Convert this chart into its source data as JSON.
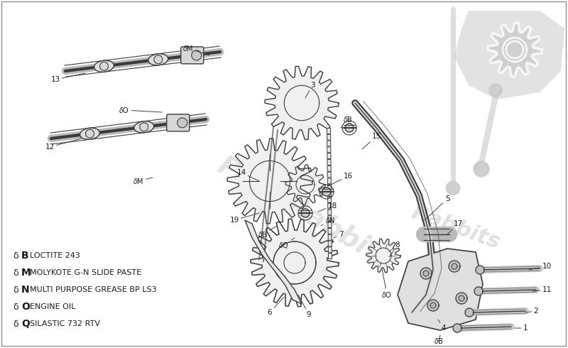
{
  "bg_color": "#ffffff",
  "line_color": "#3a3a3a",
  "light_gray": "#c8c8c8",
  "legend_items": [
    {
      "symbol": "B",
      "text": "LOCTITE 243"
    },
    {
      "symbol": "M",
      "text": "MOLYKOTE G-N SLIDE PASTE"
    },
    {
      "symbol": "N",
      "text": "MULTI PURPOSE GREASE BP LS3"
    },
    {
      "symbol": "O",
      "text": "ENGINE OIL"
    },
    {
      "symbol": "Q",
      "text": "SILASTIC 732 RTV"
    }
  ],
  "figsize": [
    8.0,
    4.9
  ],
  "dpi": 100
}
